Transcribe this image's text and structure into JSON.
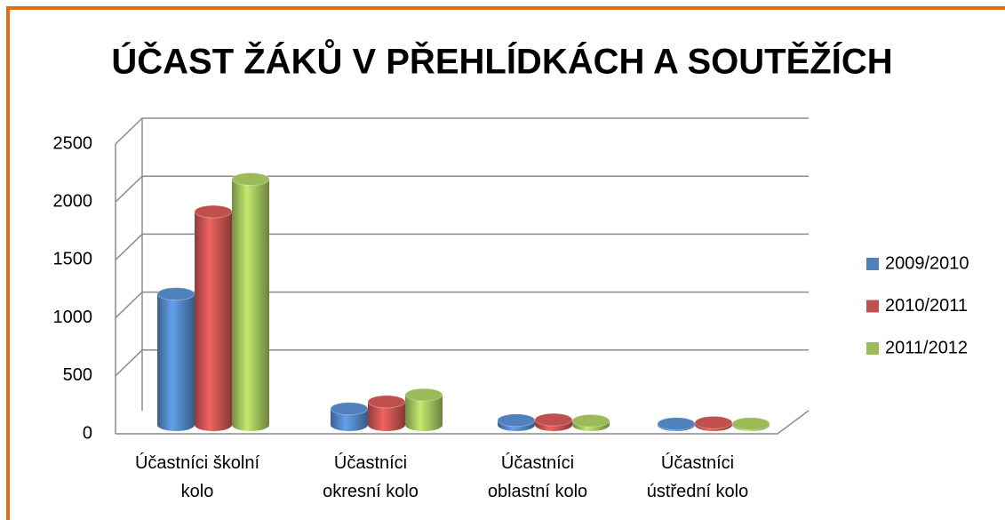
{
  "chart_data": {
    "type": "bar3d",
    "title": "ÚČAST ŽÁKŮ V PŘEHLÍDKÁCH A SOUTĚŽÍCH",
    "categories": [
      "Účastníci školní kolo",
      "Účastníci okresní kolo",
      "Účastníci oblastní kolo",
      "Účastníci ústřední kolo"
    ],
    "series": [
      {
        "name": "2009/2010",
        "color": "#4f81bd",
        "values": [
          1130,
          140,
          40,
          10
        ]
      },
      {
        "name": "2010/2011",
        "color": "#c0504d",
        "values": [
          1840,
          200,
          45,
          20
        ]
      },
      {
        "name": "2011/2012",
        "color": "#9bbb59",
        "values": [
          2120,
          260,
          35,
          10
        ]
      }
    ],
    "ylim": [
      0,
      2500
    ],
    "yticks": [
      0,
      500,
      1000,
      1500,
      2000,
      2500
    ],
    "grid": true,
    "legend": "right"
  }
}
